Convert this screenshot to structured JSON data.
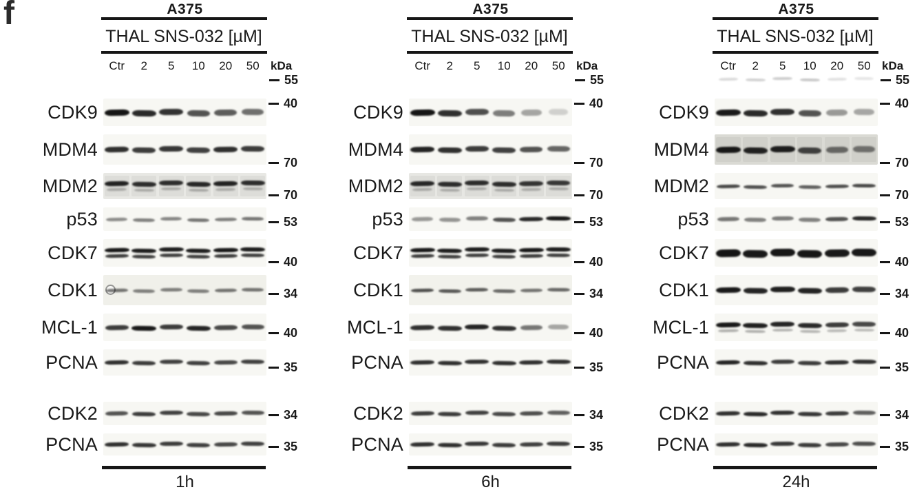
{
  "figure_label": "f",
  "colors": {
    "text": "#1a1a1a",
    "band": "#0e0e0e",
    "line": "#161616",
    "strip_bg": "#f7f7f3"
  },
  "marker_top": "55",
  "panels": [
    {
      "cell_line": "A375",
      "treatment": "THAL SNS-032 [µM]",
      "lanes": [
        "Ctr",
        "2",
        "5",
        "10",
        "20",
        "50"
      ],
      "kda_label": "kDa",
      "marker_top": "55",
      "time_label": "1h",
      "rows": [
        {
          "protein": "CDK9",
          "marker": "40",
          "h": 9,
          "bands": [
            0.97,
            0.88,
            0.84,
            0.7,
            0.66,
            0.58
          ]
        },
        {
          "protein": "MDM4",
          "marker": "70",
          "h": 8,
          "bands": [
            0.85,
            0.8,
            0.82,
            0.78,
            0.85,
            0.8
          ]
        },
        {
          "protein": "MDM2",
          "marker": "70",
          "h": 7,
          "bg": "#e8e8e4",
          "lane_shade": true,
          "bands": [
            0.9,
            0.85,
            0.85,
            0.88,
            0.9,
            0.85
          ],
          "bands2": [
            0.25,
            0.24,
            0.24,
            0.25,
            0.24,
            0.24
          ],
          "h2": 4
        },
        {
          "protein": "p53",
          "marker": "53",
          "h": 5,
          "bands": [
            0.45,
            0.5,
            0.48,
            0.55,
            0.5,
            0.55
          ]
        },
        {
          "protein": "CDK7",
          "marker": "40",
          "h": 6,
          "bands": [
            0.95,
            0.93,
            0.93,
            0.93,
            0.95,
            0.93
          ],
          "bands2": [
            0.8,
            0.78,
            0.78,
            0.78,
            0.8,
            0.78
          ],
          "h2": 5
        },
        {
          "protein": "CDK1",
          "marker": "34",
          "h": 5,
          "bg": "#f0f0ea",
          "artifact": "ring",
          "bands": [
            0.55,
            0.5,
            0.5,
            0.5,
            0.55,
            0.55
          ]
        },
        {
          "protein": "MCL-1",
          "marker": "40",
          "h": 7,
          "bands": [
            0.8,
            0.95,
            0.8,
            0.9,
            0.75,
            0.7
          ]
        },
        {
          "protein": "PCNA",
          "marker": "35",
          "h": 6,
          "bands": [
            0.85,
            0.8,
            0.78,
            0.78,
            0.75,
            0.78
          ]
        },
        {
          "protein": "CDK2",
          "marker": "34",
          "h": 6,
          "bands": [
            0.7,
            0.8,
            0.78,
            0.75,
            0.75,
            0.7
          ]
        },
        {
          "protein": "PCNA",
          "marker": "35",
          "h": 6,
          "bands": [
            0.85,
            0.82,
            0.8,
            0.78,
            0.75,
            0.78
          ]
        }
      ]
    },
    {
      "cell_line": "A375",
      "treatment": "THAL SNS-032 [µM]",
      "lanes": [
        "Ctr",
        "2",
        "5",
        "10",
        "20",
        "50"
      ],
      "kda_label": "kDa",
      "marker_top": "55",
      "time_label": "6h",
      "rows": [
        {
          "protein": "CDK9",
          "marker": "40",
          "h": 9,
          "bands": [
            0.97,
            0.85,
            0.72,
            0.52,
            0.35,
            0.16
          ]
        },
        {
          "protein": "MDM4",
          "marker": "70",
          "h": 8,
          "bands": [
            0.9,
            0.85,
            0.8,
            0.78,
            0.7,
            0.62
          ]
        },
        {
          "protein": "MDM2",
          "marker": "70",
          "h": 7,
          "bg": "#e7e7e3",
          "lane_shade": true,
          "bands": [
            0.88,
            0.85,
            0.85,
            0.85,
            0.82,
            0.8
          ],
          "bands2": [
            0.25,
            0.24,
            0.24,
            0.24,
            0.24,
            0.24
          ],
          "h2": 4
        },
        {
          "protein": "p53",
          "marker": "53",
          "h": 6,
          "bands": [
            0.4,
            0.42,
            0.5,
            0.7,
            0.88,
            0.95
          ]
        },
        {
          "protein": "CDK7",
          "marker": "40",
          "h": 6,
          "bands": [
            0.95,
            0.93,
            0.93,
            0.93,
            0.95,
            0.93
          ],
          "bands2": [
            0.8,
            0.78,
            0.78,
            0.78,
            0.8,
            0.78
          ],
          "h2": 5
        },
        {
          "protein": "CDK1",
          "marker": "34",
          "h": 5,
          "bg": "#f2f2ec",
          "bands": [
            0.7,
            0.68,
            0.65,
            0.6,
            0.55,
            0.6
          ]
        },
        {
          "protein": "MCL-1",
          "marker": "40",
          "h": 7,
          "bands": [
            0.85,
            0.85,
            0.9,
            0.85,
            0.55,
            0.35
          ]
        },
        {
          "protein": "PCNA",
          "marker": "35",
          "h": 6,
          "bands": [
            0.85,
            0.85,
            0.85,
            0.85,
            0.85,
            0.85
          ]
        },
        {
          "protein": "CDK2",
          "marker": "34",
          "h": 6,
          "bands": [
            0.8,
            0.8,
            0.78,
            0.75,
            0.72,
            0.65
          ]
        },
        {
          "protein": "PCNA",
          "marker": "35",
          "h": 6,
          "bands": [
            0.85,
            0.85,
            0.82,
            0.8,
            0.78,
            0.8
          ]
        }
      ]
    },
    {
      "cell_line": "A375",
      "treatment": "THAL SNS-032 [µM]",
      "lanes": [
        "Ctr",
        "2",
        "5",
        "10",
        "20",
        "50"
      ],
      "kda_label": "kDa",
      "marker_top": "55",
      "time_label": "24h",
      "smudge_55": [
        0.15,
        0.18,
        0.2,
        0.22,
        0.12,
        0.1
      ],
      "rows": [
        {
          "protein": "CDK9",
          "marker": "40",
          "h": 9,
          "bands": [
            0.95,
            0.88,
            0.85,
            0.7,
            0.4,
            0.34
          ]
        },
        {
          "protein": "MDM4",
          "marker": "70",
          "h": 9,
          "bg": "#dadad4",
          "lane_shade": true,
          "bands": [
            0.95,
            0.9,
            0.92,
            0.75,
            0.55,
            0.5
          ]
        },
        {
          "protein": "MDM2",
          "marker": "70",
          "h": 5,
          "bands": [
            0.75,
            0.72,
            0.7,
            0.65,
            0.72,
            0.75
          ]
        },
        {
          "protein": "p53",
          "marker": "53",
          "h": 6,
          "bands": [
            0.55,
            0.5,
            0.52,
            0.5,
            0.7,
            0.88
          ]
        },
        {
          "protein": "CDK7",
          "marker": "40",
          "h": 11,
          "bands": [
            0.97,
            0.95,
            0.96,
            0.96,
            0.95,
            0.95
          ]
        },
        {
          "protein": "CDK1",
          "marker": "34",
          "h": 8,
          "bands": [
            0.95,
            0.9,
            0.92,
            0.9,
            0.8,
            0.78
          ]
        },
        {
          "protein": "MCL-1",
          "marker": "40",
          "h": 7,
          "bands": [
            0.95,
            0.92,
            0.9,
            0.88,
            0.8,
            0.75
          ],
          "bands2": [
            0.3,
            0.3,
            0.28,
            0.28,
            0.26,
            0.25
          ],
          "h2": 4
        },
        {
          "protein": "PCNA",
          "marker": "35",
          "h": 6,
          "bands": [
            0.9,
            0.85,
            0.8,
            0.8,
            0.85,
            0.85
          ]
        },
        {
          "protein": "CDK2",
          "marker": "34",
          "h": 6,
          "bands": [
            0.85,
            0.88,
            0.85,
            0.82,
            0.8,
            0.65
          ]
        },
        {
          "protein": "PCNA",
          "marker": "35",
          "h": 6,
          "bands": [
            0.85,
            0.88,
            0.82,
            0.8,
            0.75,
            0.72
          ]
        }
      ]
    }
  ]
}
